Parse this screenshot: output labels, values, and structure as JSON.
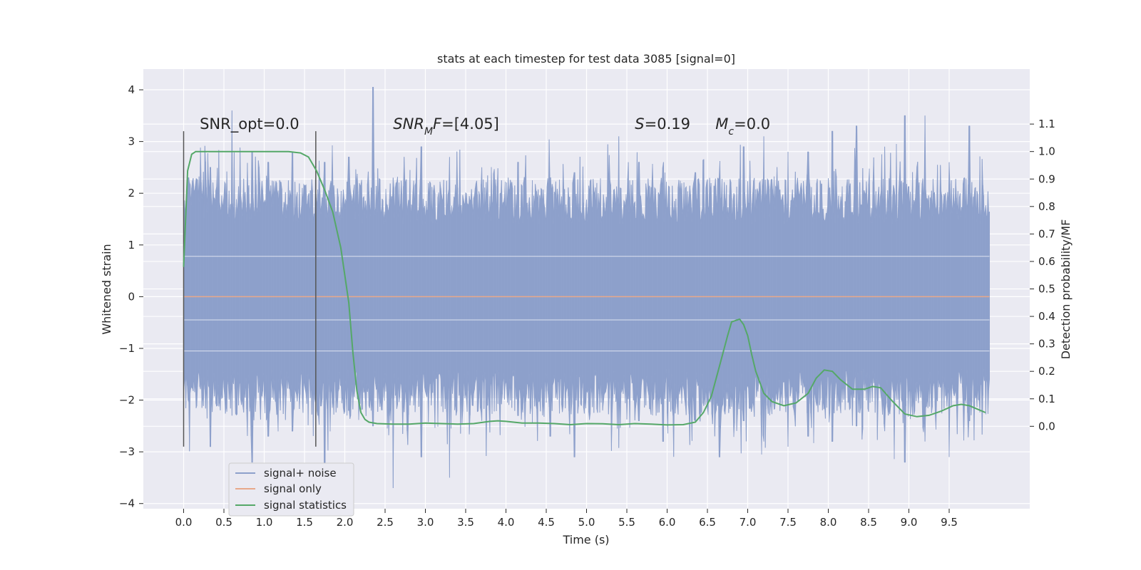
{
  "chart_data": {
    "type": "line",
    "title": "stats at each timestep for test data 3085 [signal=0]",
    "xlabel": "Time (s)",
    "ylabel_left": "Whitened strain",
    "ylabel_right": "Detection probability/MF",
    "xlim": [
      -0.5,
      10.5
    ],
    "ylim_left": [
      -4.1,
      4.4
    ],
    "ylim_right": [
      -0.3,
      1.3
    ],
    "x_ticks": [
      0.0,
      0.5,
      1.0,
      1.5,
      2.0,
      2.5,
      3.0,
      3.5,
      4.0,
      4.5,
      5.0,
      5.5,
      6.0,
      6.5,
      7.0,
      7.5,
      8.0,
      8.5,
      9.0,
      9.5
    ],
    "x_tick_labels": [
      "0.0",
      "0.5",
      "1.0",
      "1.5",
      "2.0",
      "2.5",
      "3.0",
      "3.5",
      "4.0",
      "4.5",
      "5.0",
      "5.5",
      "6.0",
      "6.5",
      "7.0",
      "7.5",
      "8.0",
      "8.5",
      "9.0",
      "9.5"
    ],
    "y_left_ticks": [
      4,
      3,
      2,
      1,
      0,
      -1,
      -2,
      -3,
      -4
    ],
    "y_left_tick_labels": [
      "4",
      "3",
      "2",
      "1",
      "0",
      "−1",
      "−2",
      "−3",
      "−4"
    ],
    "y_right_ticks": [
      1.1,
      1.0,
      0.9,
      0.8,
      0.7,
      0.6,
      0.5,
      0.4,
      0.3,
      0.2,
      0.1,
      0.0
    ],
    "y_right_tick_labels": [
      "1.1",
      "1.0",
      "0.9",
      "0.8",
      "0.7",
      "0.6",
      "0.5",
      "0.4",
      "0.3",
      "0.2",
      "0.1",
      "0.0"
    ],
    "grid": true,
    "legend": "lower-left",
    "series": [
      {
        "name": "signal+ noise",
        "color": "#8da0cb",
        "axis": "left",
        "x_range": [
          0.0,
          10.0
        ],
        "band": [
          -1.4,
          1.4
        ],
        "peaks": [
          {
            "x": 0.06,
            "max": 2.3,
            "min": -2.0
          },
          {
            "x": 0.33,
            "max": 2.5,
            "min": -2.9
          },
          {
            "x": 0.6,
            "max": 3.6,
            "min": -2.3
          },
          {
            "x": 0.85,
            "max": 2.8,
            "min": -3.2
          },
          {
            "x": 1.05,
            "max": 2.6,
            "min": -2.7
          },
          {
            "x": 1.35,
            "max": 2.8,
            "min": -2.6
          },
          {
            "x": 1.75,
            "max": 2.6,
            "min": -3.5
          },
          {
            "x": 2.05,
            "max": 2.7,
            "min": -2.2
          },
          {
            "x": 2.35,
            "max": 4.05,
            "min": -2.5
          },
          {
            "x": 2.6,
            "max": 2.3,
            "min": -3.7
          },
          {
            "x": 2.95,
            "max": 2.9,
            "min": -3.1
          },
          {
            "x": 3.3,
            "max": 2.7,
            "min": -3.5
          },
          {
            "x": 3.7,
            "max": 2.5,
            "min": -2.4
          },
          {
            "x": 4.15,
            "max": 2.6,
            "min": -2.3
          },
          {
            "x": 4.55,
            "max": 2.3,
            "min": -2.7
          },
          {
            "x": 4.85,
            "max": 2.4,
            "min": -3.1
          },
          {
            "x": 5.4,
            "max": 3.1,
            "min": -2.3
          },
          {
            "x": 5.65,
            "max": 2.6,
            "min": -2.4
          },
          {
            "x": 5.95,
            "max": 2.5,
            "min": -2.8
          },
          {
            "x": 6.35,
            "max": 2.4,
            "min": -2.4
          },
          {
            "x": 6.65,
            "max": 2.3,
            "min": -3.1
          },
          {
            "x": 6.95,
            "max": 2.9,
            "min": -2.4
          },
          {
            "x": 7.2,
            "max": 3.1,
            "min": -2.8
          },
          {
            "x": 7.5,
            "max": 2.8,
            "min": -2.9
          },
          {
            "x": 7.75,
            "max": 2.8,
            "min": -2.7
          },
          {
            "x": 8.05,
            "max": 3.2,
            "min": -2.8
          },
          {
            "x": 8.35,
            "max": 3.3,
            "min": -2.5
          },
          {
            "x": 8.7,
            "max": 2.9,
            "min": -2.6
          },
          {
            "x": 8.95,
            "max": 3.5,
            "min": -3.2
          },
          {
            "x": 9.2,
            "max": 3.5,
            "min": -2.8
          },
          {
            "x": 9.5,
            "max": 2.6,
            "min": -3.1
          },
          {
            "x": 9.75,
            "max": 3.3,
            "min": -2.4
          },
          {
            "x": 9.95,
            "max": 1.65,
            "min": -1.6
          }
        ]
      },
      {
        "name": "signal only",
        "color": "#e8a88a",
        "axis": "left",
        "x": [
          0.0,
          10.0
        ],
        "y": [
          0.0,
          0.0
        ]
      },
      {
        "name": "signal statistics",
        "color": "#55a868",
        "axis": "right",
        "x": [
          0.0,
          0.05,
          0.1,
          0.15,
          0.3,
          0.6,
          1.0,
          1.3,
          1.45,
          1.55,
          1.65,
          1.75,
          1.85,
          1.95,
          2.0,
          2.05,
          2.1,
          2.15,
          2.2,
          2.25,
          2.3,
          2.4,
          2.6,
          2.8,
          3.0,
          3.2,
          3.4,
          3.6,
          3.8,
          3.9,
          4.0,
          4.2,
          4.4,
          4.6,
          4.8,
          5.0,
          5.2,
          5.4,
          5.6,
          5.8,
          6.0,
          6.2,
          6.35,
          6.45,
          6.55,
          6.65,
          6.75,
          6.8,
          6.85,
          6.9,
          6.95,
          7.0,
          7.05,
          7.1,
          7.2,
          7.3,
          7.45,
          7.6,
          7.75,
          7.85,
          7.95,
          8.05,
          8.15,
          8.3,
          8.45,
          8.55,
          8.65,
          8.8,
          8.95,
          9.1,
          9.25,
          9.4,
          9.55,
          9.65,
          9.75,
          9.95
        ],
        "y": [
          0.58,
          0.93,
          0.99,
          1.0,
          1.0,
          1.0,
          1.0,
          1.0,
          0.995,
          0.98,
          0.93,
          0.86,
          0.78,
          0.65,
          0.55,
          0.45,
          0.27,
          0.13,
          0.05,
          0.025,
          0.015,
          0.01,
          0.008,
          0.008,
          0.012,
          0.01,
          0.008,
          0.01,
          0.018,
          0.02,
          0.018,
          0.012,
          0.012,
          0.01,
          0.006,
          0.01,
          0.009,
          0.006,
          0.01,
          0.008,
          0.005,
          0.006,
          0.015,
          0.05,
          0.11,
          0.22,
          0.33,
          0.38,
          0.385,
          0.39,
          0.37,
          0.33,
          0.26,
          0.2,
          0.12,
          0.09,
          0.075,
          0.085,
          0.12,
          0.175,
          0.205,
          0.2,
          0.17,
          0.135,
          0.135,
          0.145,
          0.14,
          0.09,
          0.045,
          0.035,
          0.04,
          0.055,
          0.075,
          0.08,
          0.075,
          0.05
        ]
      }
    ],
    "vlines": [
      {
        "x": 0.0,
        "ymin": -2.9,
        "ymax": 3.2,
        "color": "#555555"
      },
      {
        "x": 1.64,
        "ymin": -2.9,
        "ymax": 3.2,
        "color": "#555555"
      }
    ],
    "annotations": [
      {
        "parts": [
          {
            "t": "SNR_opt=0.0",
            "italic": false
          }
        ],
        "x": 0.2,
        "y": 3.2
      },
      {
        "parts": [
          {
            "t": "SNR",
            "italic": true
          },
          {
            "t": "M",
            "italic": true,
            "sub": true
          },
          {
            "t": "F",
            "italic": true
          },
          {
            "t": "=[4.05]",
            "italic": false
          }
        ],
        "x": 2.6,
        "y": 3.2
      },
      {
        "parts": [
          {
            "t": "S",
            "italic": true
          },
          {
            "t": "=0.19",
            "italic": false
          }
        ],
        "x": 5.6,
        "y": 3.2
      },
      {
        "parts": [
          {
            "t": "M",
            "italic": true
          },
          {
            "t": "c",
            "italic": true,
            "sub": true
          },
          {
            "t": "=0.0",
            "italic": false
          }
        ],
        "x": 6.6,
        "y": 3.2
      }
    ]
  }
}
